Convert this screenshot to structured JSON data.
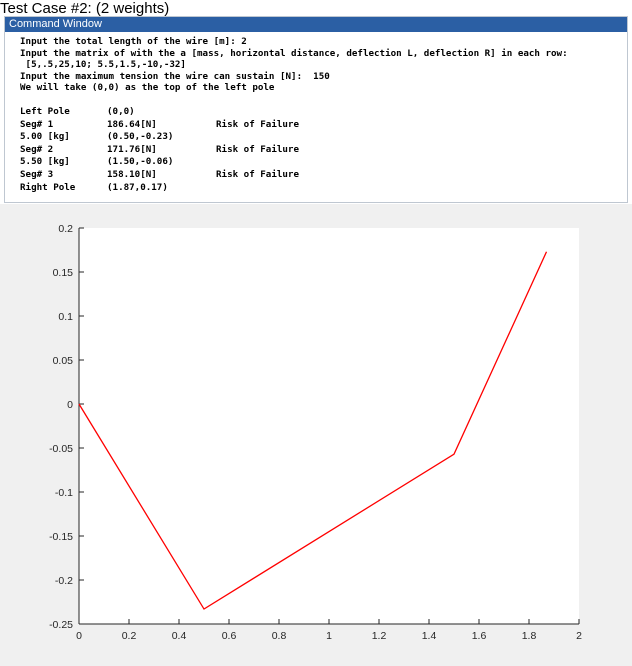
{
  "caption": "Test Case #2: (2 weights)",
  "window_title": "Command Window",
  "prompt_lines": [
    "Input the total length of the wire [m]: 2",
    "Input the matrix of with the a [mass, horizontal distance, deflection L, deflection R] in each row:",
    " [5,.5,25,10; 5.5,1.5,-10,-32]",
    "Input the maximum tension the wire can sustain [N]:  150",
    "We will take (0,0) as the top of the left pole"
  ],
  "results": [
    {
      "label": "Left Pole",
      "value": "(0,0)",
      "status": ""
    },
    {
      "label": "Seg# 1",
      "value": "186.64[N]",
      "status": "Risk of Failure"
    },
    {
      "label": "5.00 [kg]",
      "value": "(0.50,-0.23)",
      "status": ""
    },
    {
      "label": "Seg# 2",
      "value": "171.76[N]",
      "status": "Risk of Failure"
    },
    {
      "label": "5.50 [kg]",
      "value": "(1.50,-0.06)",
      "status": ""
    },
    {
      "label": "Seg# 3",
      "value": "158.10[N]",
      "status": "Risk of Failure"
    },
    {
      "label": "Right Pole",
      "value": "(1.87,0.17)",
      "status": ""
    }
  ],
  "chart_data": {
    "type": "line",
    "x": [
      0,
      0.5,
      1.5,
      1.87
    ],
    "y": [
      0,
      -0.233,
      -0.057,
      0.173
    ],
    "xlim": [
      0,
      2
    ],
    "ylim": [
      -0.25,
      0.2
    ],
    "xticks": [
      0,
      0.2,
      0.4,
      0.6,
      0.8,
      1,
      1.2,
      1.4,
      1.6,
      1.8,
      2
    ],
    "yticks": [
      0.2,
      0.15,
      0.1,
      0.05,
      0,
      -0.05,
      -0.1,
      -0.15,
      -0.2,
      -0.25
    ],
    "xtick_labels": [
      "0",
      "0.2",
      "0.4",
      "0.6",
      "0.8",
      "1",
      "1.2",
      "1.4",
      "1.6",
      "1.8",
      "2"
    ],
    "ytick_labels": [
      "0.2",
      "0.15",
      "0.1",
      "0.05",
      "0",
      "-0.05",
      "-0.1",
      "-0.15",
      "-0.2",
      "-0.25"
    ],
    "line_color": "#ff0000",
    "grid": false,
    "title": "",
    "xlabel": "",
    "ylabel": ""
  }
}
